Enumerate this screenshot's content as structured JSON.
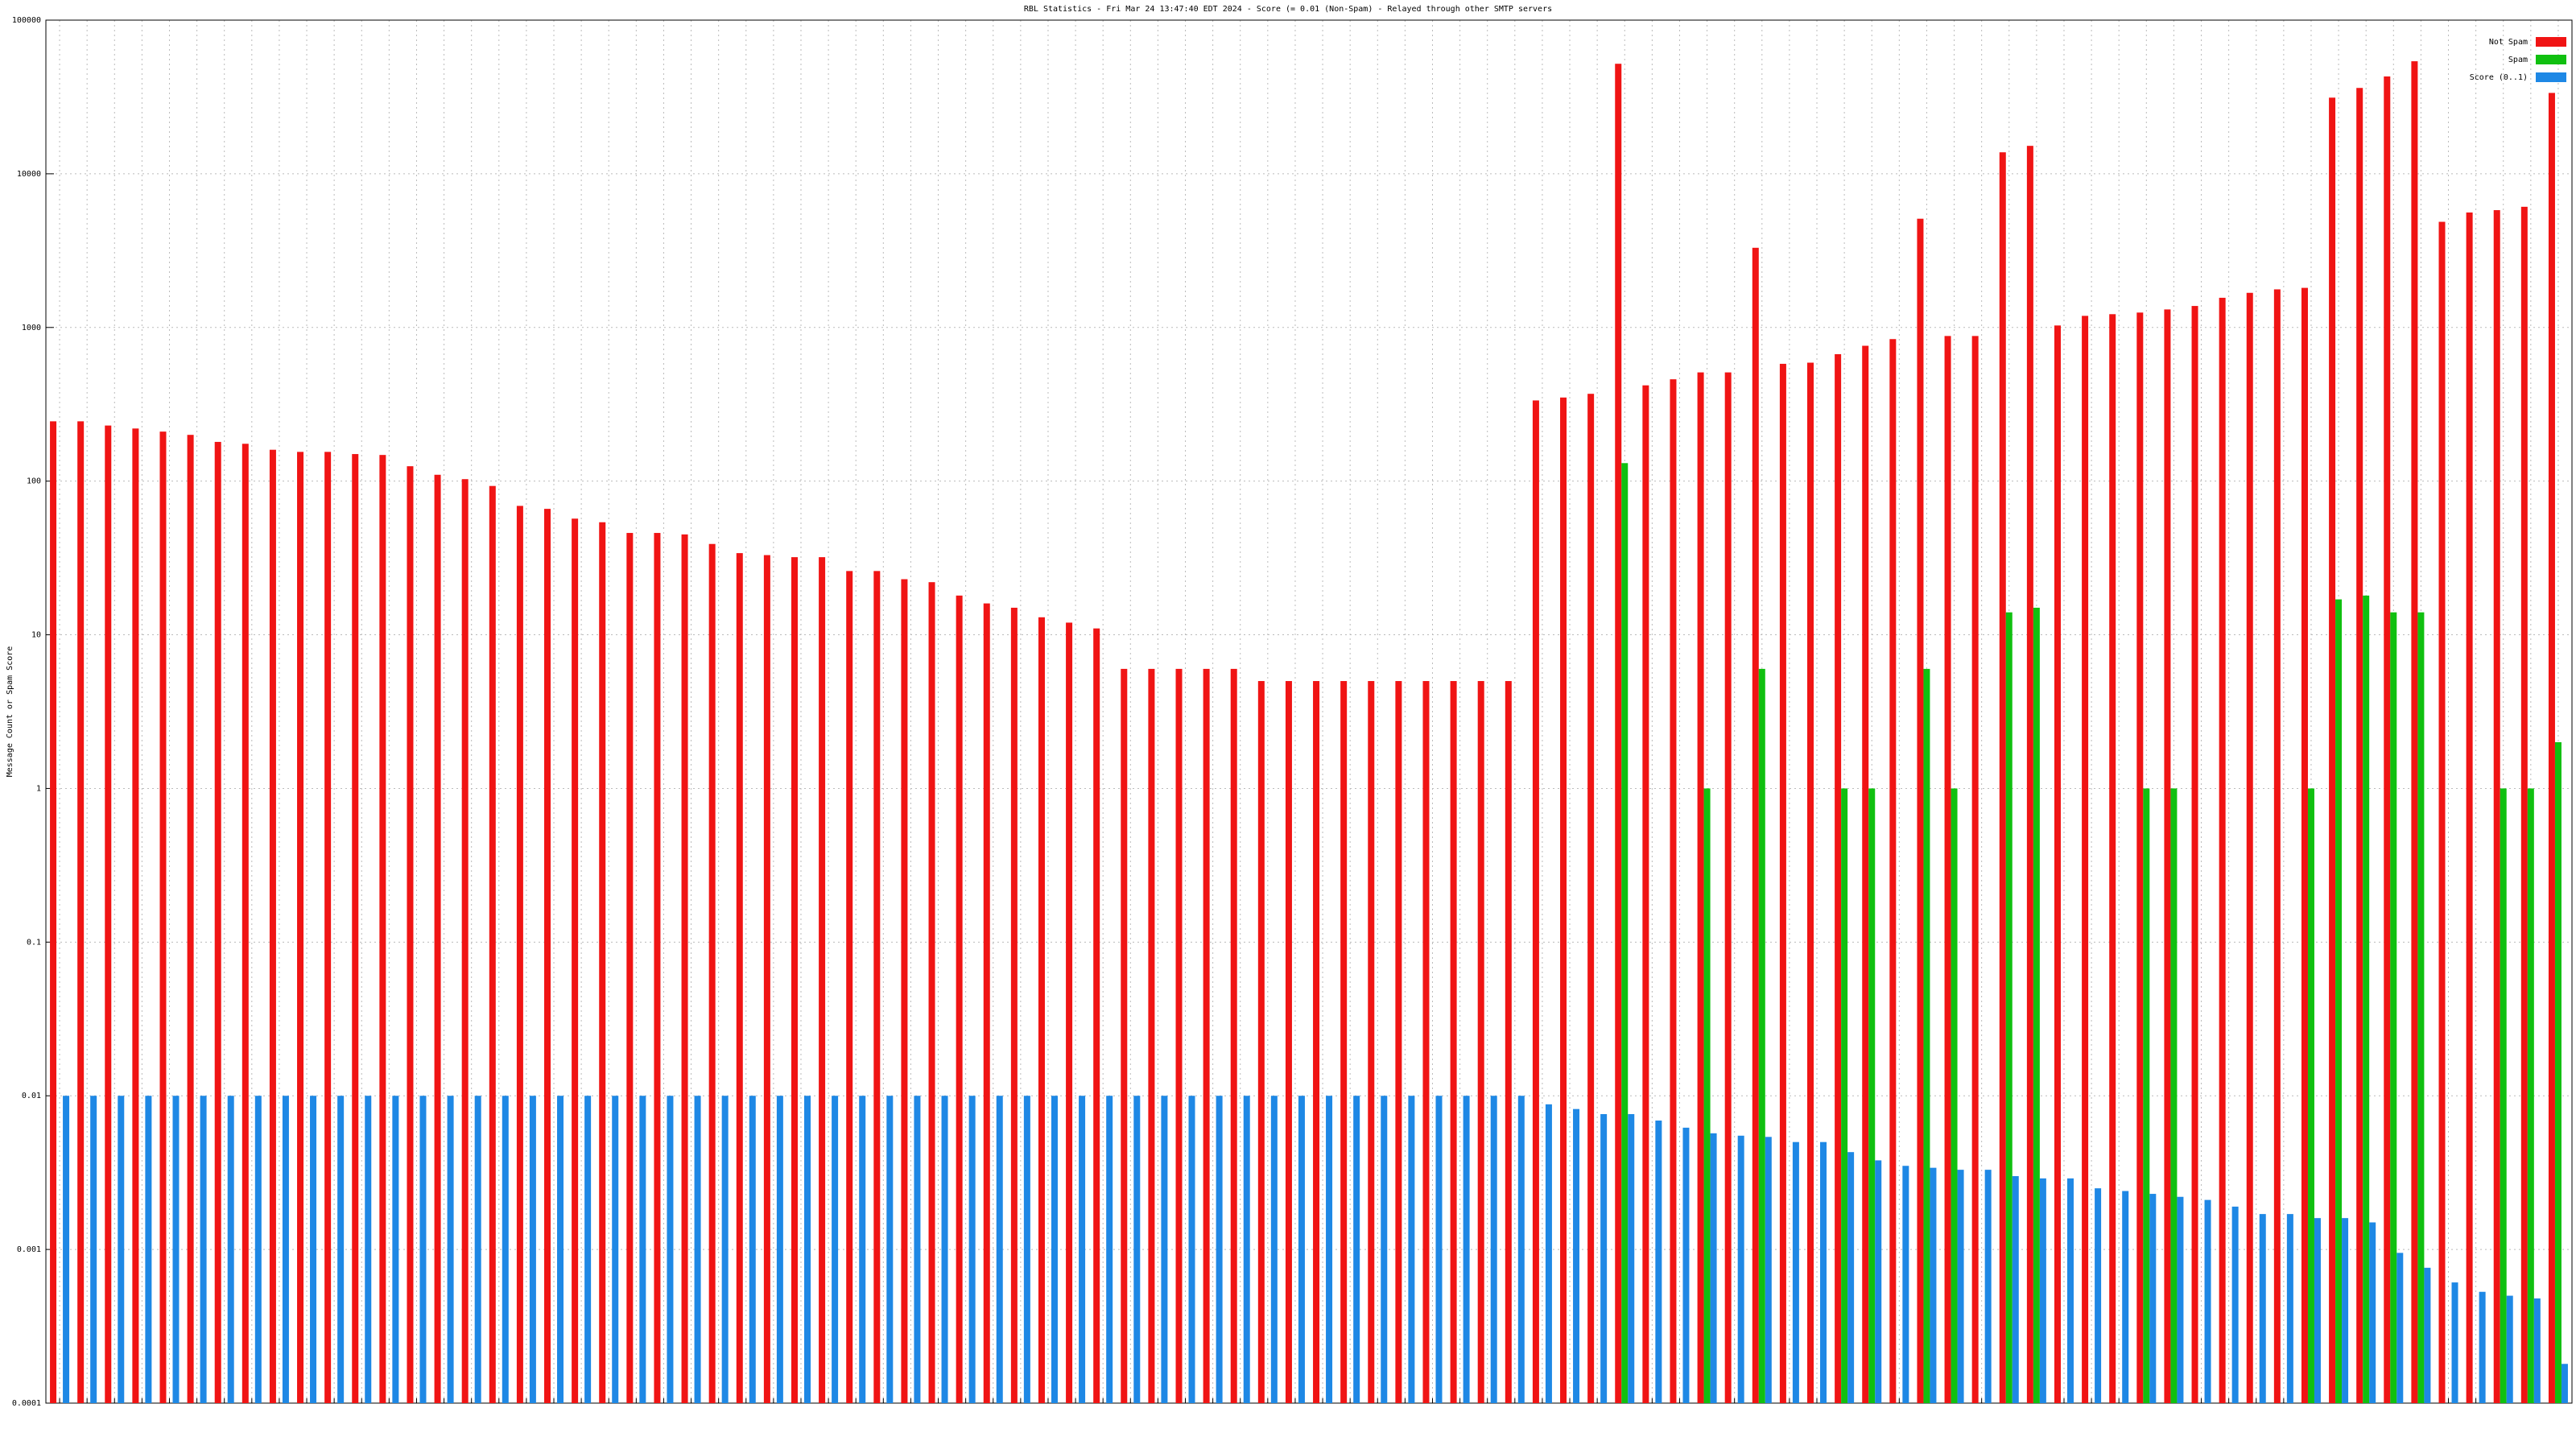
{
  "chart_data": {
    "type": "bar",
    "log_scale": true,
    "grid": true,
    "legend": "top-right",
    "title": "RBL Statistics - Fri Mar 24 13:47:40 EDT 2024 - Score (= 0.01 (Non-Spam) - Relayed through other SMTP servers",
    "ylabel": "Message Count or Spam Score",
    "ylim": [
      0.0001,
      100000
    ],
    "yticks": [
      0.0001,
      0.001,
      0.01,
      0.1,
      1,
      10,
      100,
      1000,
      10000,
      100000
    ],
    "categories": [
      null,
      null,
      null,
      null,
      null,
      null,
      null,
      null,
      null,
      null,
      null,
      null,
      null,
      null,
      null,
      null,
      null,
      null,
      null,
      null,
      null,
      null,
      null,
      null,
      null,
      null,
      null,
      null,
      null,
      null,
      null,
      null,
      null,
      null,
      null,
      null,
      null,
      null,
      null,
      null,
      null,
      null,
      null,
      null,
      null,
      null,
      null,
      null,
      null,
      null,
      null,
      null,
      null,
      null,
      null,
      null,
      null,
      null,
      null,
      null,
      null,
      null,
      null,
      null,
      null,
      null,
      null,
      null,
      null,
      null,
      null,
      null,
      null,
      null,
      null,
      null,
      null,
      null,
      null,
      null,
      null,
      null,
      null,
      null,
      null,
      null,
      null,
      null,
      null,
      null,
      null,
      null
    ],
    "series": [
      {
        "name": "Not Spam",
        "color": "#f01414",
        "values": [
          245,
          245,
          230,
          220,
          210,
          200,
          180,
          175,
          160,
          155,
          155,
          150,
          148,
          125,
          110,
          103,
          93,
          69,
          66,
          57,
          54,
          46,
          46,
          45,
          39,
          34,
          33,
          32,
          32,
          26,
          26,
          23,
          22,
          18,
          16,
          15,
          13,
          12,
          11,
          6,
          6,
          6,
          6,
          6,
          5,
          5,
          5,
          5,
          5,
          5,
          5,
          5,
          5,
          5,
          335,
          350,
          370,
          52000,
          420,
          460,
          510,
          510,
          3300,
          580,
          590,
          670,
          760,
          840,
          5100,
          880,
          880,
          13800,
          15200,
          1030,
          1190,
          1220,
          1250,
          1310,
          1380,
          1560,
          1680,
          1770,
          1810,
          31300,
          36200,
          43000,
          54000,
          4870,
          5600,
          5800,
          6100,
          33600
        ]
      },
      {
        "name": "Spam",
        "color": "#10c010",
        "values": [
          null,
          null,
          null,
          null,
          null,
          null,
          null,
          null,
          null,
          null,
          null,
          null,
          null,
          null,
          null,
          null,
          null,
          null,
          null,
          null,
          null,
          null,
          null,
          null,
          null,
          null,
          null,
          null,
          null,
          null,
          null,
          null,
          null,
          null,
          null,
          null,
          null,
          null,
          null,
          null,
          null,
          null,
          null,
          null,
          null,
          null,
          null,
          null,
          null,
          null,
          null,
          null,
          null,
          null,
          null,
          null,
          null,
          131,
          null,
          null,
          1,
          null,
          6,
          null,
          null,
          1,
          1,
          null,
          6,
          1,
          null,
          14,
          15,
          null,
          null,
          null,
          1,
          1,
          null,
          null,
          null,
          null,
          1,
          17,
          18,
          14,
          14,
          null,
          null,
          1,
          1,
          2
        ]
      },
      {
        "name": "Score (0..1)",
        "color": "#1e88e5",
        "values": [
          0.01,
          0.01,
          0.01,
          0.01,
          0.01,
          0.01,
          0.01,
          0.01,
          0.01,
          0.01,
          0.01,
          0.01,
          0.01,
          0.01,
          0.01,
          0.01,
          0.01,
          0.01,
          0.01,
          0.01,
          0.01,
          0.01,
          0.01,
          0.01,
          0.01,
          0.01,
          0.01,
          0.01,
          0.01,
          0.01,
          0.01,
          0.01,
          0.01,
          0.01,
          0.01,
          0.01,
          0.01,
          0.01,
          0.01,
          0.01,
          0.01,
          0.01,
          0.01,
          0.01,
          0.01,
          0.01,
          0.01,
          0.01,
          0.01,
          0.01,
          0.01,
          0.01,
          0.01,
          0.01,
          0.0088,
          0.0082,
          0.0076,
          0.0076,
          0.0069,
          0.0062,
          0.0057,
          0.0055,
          0.0054,
          0.005,
          0.005,
          0.0043,
          0.0038,
          0.0035,
          0.0034,
          0.0033,
          0.0033,
          0.003,
          0.0029,
          0.0029,
          0.0025,
          0.0024,
          0.0023,
          0.0022,
          0.0021,
          0.0019,
          0.0017,
          0.0017,
          0.0016,
          0.0016,
          0.0015,
          0.00095,
          0.00076,
          0.00061,
          0.00053,
          0.0005,
          0.00048,
          0.00018
        ]
      }
    ]
  }
}
